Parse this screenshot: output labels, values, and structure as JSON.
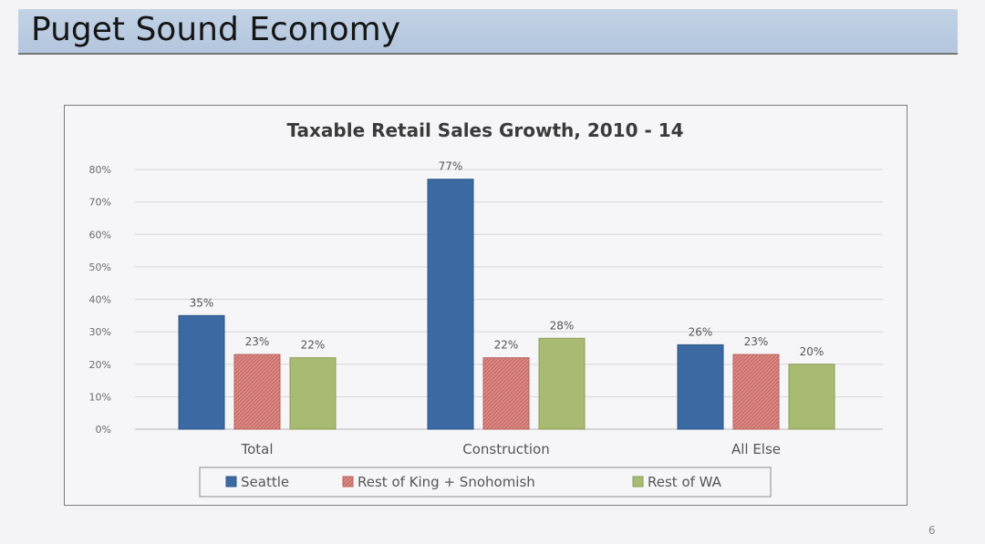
{
  "slide": {
    "title": "Puget Sound Economy",
    "page_number": "6"
  },
  "colors": {
    "seattle": "#3b6aa3",
    "king": "#d98c88",
    "wa": "#a9ba72"
  },
  "chart_data": {
    "type": "bar",
    "title": "Taxable Retail Sales Growth, 2010 - 14",
    "xlabel": "",
    "ylabel": "",
    "ylim": [
      0,
      80
    ],
    "yticks": [
      "0%",
      "10%",
      "20%",
      "30%",
      "40%",
      "50%",
      "60%",
      "70%",
      "80%"
    ],
    "categories": [
      "Total",
      "Construction",
      "All Else"
    ],
    "series": [
      {
        "name": "Seattle",
        "values": [
          35,
          77,
          26
        ],
        "labels": [
          "35%",
          "77%",
          "26%"
        ]
      },
      {
        "name": "Rest of King + Snohomish",
        "values": [
          23,
          22,
          23
        ],
        "labels": [
          "23%",
          "22%",
          "23%"
        ]
      },
      {
        "name": "Rest of WA",
        "values": [
          22,
          28,
          20
        ],
        "labels": [
          "22%",
          "28%",
          "20%"
        ]
      }
    ],
    "grid": true,
    "legend_position": "bottom"
  }
}
